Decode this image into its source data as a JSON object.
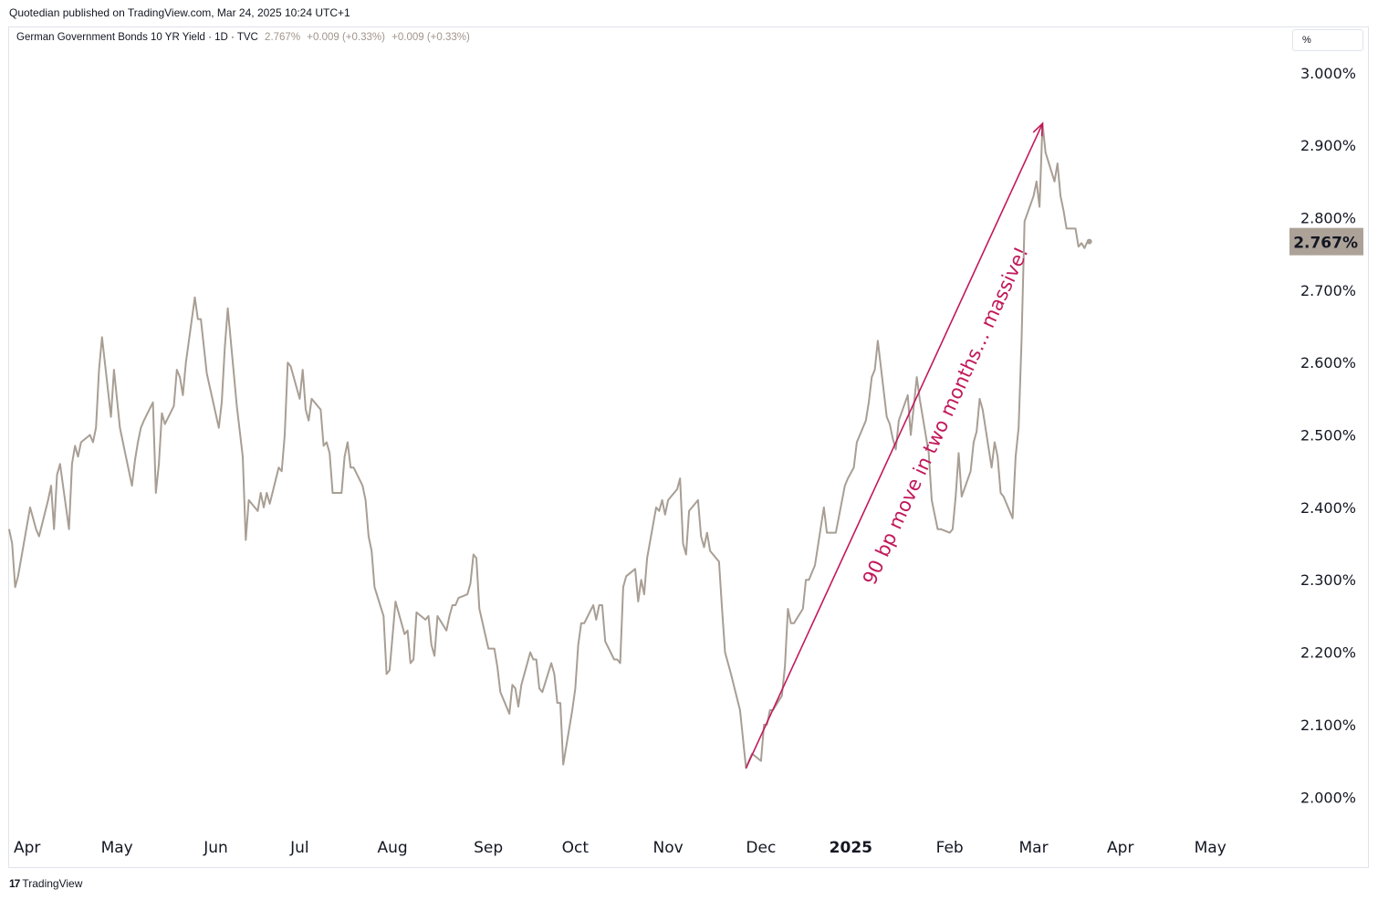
{
  "header": {
    "published": "Quotedian published on TradingView.com, Mar 24, 2025 10:24 UTC+1"
  },
  "legend": {
    "symbol": "German Government Bonds 10 YR Yield · 1D · TVC",
    "last": "2.767%",
    "change1": "+0.009 (+0.33%)",
    "change2": "+0.009 (+0.33%)"
  },
  "unit_selector": "%",
  "footer": {
    "logo_icon": "tradingview-logo-icon",
    "logo_text": "TradingView"
  },
  "colors": {
    "line": "#a89e94",
    "annotation": "#c2185b",
    "price_label_bg": "#aca298",
    "grid": "#ffffff"
  },
  "chart_data": {
    "type": "line",
    "title": "",
    "xlabel": "",
    "ylabel": "",
    "ylim": [
      1.96,
      3.03
    ],
    "y_ticks": [
      "2.000%",
      "2.100%",
      "2.200%",
      "2.300%",
      "2.400%",
      "2.500%",
      "2.600%",
      "2.700%",
      "2.800%",
      "2.900%",
      "3.000%"
    ],
    "x_range": [
      "2024-03-26",
      "2025-05-25"
    ],
    "x_ticks": [
      {
        "date": "2024-04-01",
        "label": "Apr"
      },
      {
        "date": "2024-05-01",
        "label": "May"
      },
      {
        "date": "2024-06-03",
        "label": "Jun"
      },
      {
        "date": "2024-07-01",
        "label": "Jul"
      },
      {
        "date": "2024-08-01",
        "label": "Aug"
      },
      {
        "date": "2024-09-02",
        "label": "Sep"
      },
      {
        "date": "2024-10-01",
        "label": "Oct"
      },
      {
        "date": "2024-11-01",
        "label": "Nov"
      },
      {
        "date": "2024-12-02",
        "label": "Dec"
      },
      {
        "date": "2025-01-01",
        "label": "2025",
        "bold": true
      },
      {
        "date": "2025-02-03",
        "label": "Feb"
      },
      {
        "date": "2025-03-03",
        "label": "Mar"
      },
      {
        "date": "2025-04-01",
        "label": "Apr"
      },
      {
        "date": "2025-05-01",
        "label": "May"
      }
    ],
    "last_price_label": "2.767%",
    "series": [
      {
        "points": [
          [
            "2024-03-26",
            2.37
          ],
          [
            "2024-03-27",
            2.35
          ],
          [
            "2024-03-28",
            2.29
          ],
          [
            "2024-03-29",
            2.305
          ],
          [
            "2024-04-02",
            2.4
          ],
          [
            "2024-04-04",
            2.37
          ],
          [
            "2024-04-05",
            2.36
          ],
          [
            "2024-04-08",
            2.41
          ],
          [
            "2024-04-09",
            2.43
          ],
          [
            "2024-04-10",
            2.37
          ],
          [
            "2024-04-11",
            2.445
          ],
          [
            "2024-04-12",
            2.46
          ],
          [
            "2024-04-15",
            2.37
          ],
          [
            "2024-04-16",
            2.46
          ],
          [
            "2024-04-17",
            2.485
          ],
          [
            "2024-04-18",
            2.47
          ],
          [
            "2024-04-19",
            2.49
          ],
          [
            "2024-04-22",
            2.5
          ],
          [
            "2024-04-23",
            2.49
          ],
          [
            "2024-04-24",
            2.51
          ],
          [
            "2024-04-25",
            2.59
          ],
          [
            "2024-04-26",
            2.635
          ],
          [
            "2024-04-29",
            2.525
          ],
          [
            "2024-04-30",
            2.59
          ],
          [
            "2024-05-02",
            2.51
          ],
          [
            "2024-05-03",
            2.49
          ],
          [
            "2024-05-06",
            2.43
          ],
          [
            "2024-05-07",
            2.465
          ],
          [
            "2024-05-08",
            2.49
          ],
          [
            "2024-05-09",
            2.51
          ],
          [
            "2024-05-10",
            2.52
          ],
          [
            "2024-05-13",
            2.545
          ],
          [
            "2024-05-14",
            2.42
          ],
          [
            "2024-05-15",
            2.46
          ],
          [
            "2024-05-16",
            2.53
          ],
          [
            "2024-05-17",
            2.515
          ],
          [
            "2024-05-20",
            2.54
          ],
          [
            "2024-05-21",
            2.59
          ],
          [
            "2024-05-22",
            2.58
          ],
          [
            "2024-05-23",
            2.555
          ],
          [
            "2024-05-24",
            2.6
          ],
          [
            "2024-05-27",
            2.69
          ],
          [
            "2024-05-28",
            2.66
          ],
          [
            "2024-05-29",
            2.66
          ],
          [
            "2024-05-31",
            2.585
          ],
          [
            "2024-06-04",
            2.51
          ],
          [
            "2024-06-05",
            2.545
          ],
          [
            "2024-06-06",
            2.62
          ],
          [
            "2024-06-07",
            2.675
          ],
          [
            "2024-06-10",
            2.54
          ],
          [
            "2024-06-12",
            2.47
          ],
          [
            "2024-06-13",
            2.355
          ],
          [
            "2024-06-14",
            2.41
          ],
          [
            "2024-06-17",
            2.395
          ],
          [
            "2024-06-18",
            2.42
          ],
          [
            "2024-06-19",
            2.4
          ],
          [
            "2024-06-20",
            2.42
          ],
          [
            "2024-06-21",
            2.405
          ],
          [
            "2024-06-24",
            2.455
          ],
          [
            "2024-06-25",
            2.45
          ],
          [
            "2024-06-26",
            2.5
          ],
          [
            "2024-06-27",
            2.6
          ],
          [
            "2024-06-28",
            2.595
          ],
          [
            "2024-07-01",
            2.55
          ],
          [
            "2024-07-02",
            2.59
          ],
          [
            "2024-07-03",
            2.535
          ],
          [
            "2024-07-04",
            2.52
          ],
          [
            "2024-07-05",
            2.55
          ],
          [
            "2024-07-08",
            2.535
          ],
          [
            "2024-07-09",
            2.485
          ],
          [
            "2024-07-10",
            2.49
          ],
          [
            "2024-07-11",
            2.475
          ],
          [
            "2024-07-12",
            2.42
          ],
          [
            "2024-07-15",
            2.42
          ],
          [
            "2024-07-16",
            2.47
          ],
          [
            "2024-07-17",
            2.49
          ],
          [
            "2024-07-18",
            2.455
          ],
          [
            "2024-07-19",
            2.455
          ],
          [
            "2024-07-22",
            2.43
          ],
          [
            "2024-07-23",
            2.41
          ],
          [
            "2024-07-24",
            2.36
          ],
          [
            "2024-07-25",
            2.34
          ],
          [
            "2024-07-26",
            2.29
          ],
          [
            "2024-07-29",
            2.25
          ],
          [
            "2024-07-30",
            2.17
          ],
          [
            "2024-07-31",
            2.175
          ],
          [
            "2024-08-02",
            2.27
          ],
          [
            "2024-08-05",
            2.225
          ],
          [
            "2024-08-06",
            2.23
          ],
          [
            "2024-08-07",
            2.185
          ],
          [
            "2024-08-08",
            2.19
          ],
          [
            "2024-08-09",
            2.255
          ],
          [
            "2024-08-12",
            2.245
          ],
          [
            "2024-08-13",
            2.25
          ],
          [
            "2024-08-14",
            2.21
          ],
          [
            "2024-08-15",
            2.195
          ],
          [
            "2024-08-16",
            2.25
          ],
          [
            "2024-08-19",
            2.23
          ],
          [
            "2024-08-20",
            2.25
          ],
          [
            "2024-08-21",
            2.265
          ],
          [
            "2024-08-22",
            2.265
          ],
          [
            "2024-08-23",
            2.275
          ],
          [
            "2024-08-26",
            2.28
          ],
          [
            "2024-08-27",
            2.295
          ],
          [
            "2024-08-28",
            2.335
          ],
          [
            "2024-08-29",
            2.33
          ],
          [
            "2024-08-30",
            2.26
          ],
          [
            "2024-09-02",
            2.205
          ],
          [
            "2024-09-03",
            2.205
          ],
          [
            "2024-09-04",
            2.205
          ],
          [
            "2024-09-05",
            2.18
          ],
          [
            "2024-09-06",
            2.145
          ],
          [
            "2024-09-09",
            2.115
          ],
          [
            "2024-09-10",
            2.155
          ],
          [
            "2024-09-11",
            2.15
          ],
          [
            "2024-09-12",
            2.125
          ],
          [
            "2024-09-13",
            2.155
          ],
          [
            "2024-09-16",
            2.2
          ],
          [
            "2024-09-17",
            2.19
          ],
          [
            "2024-09-18",
            2.19
          ],
          [
            "2024-09-19",
            2.15
          ],
          [
            "2024-09-20",
            2.145
          ],
          [
            "2024-09-23",
            2.185
          ],
          [
            "2024-09-24",
            2.17
          ],
          [
            "2024-09-25",
            2.13
          ],
          [
            "2024-09-26",
            2.13
          ],
          [
            "2024-09-27",
            2.045
          ],
          [
            "2024-09-30",
            2.12
          ],
          [
            "2024-10-01",
            2.15
          ],
          [
            "2024-10-02",
            2.21
          ],
          [
            "2024-10-03",
            2.24
          ],
          [
            "2024-10-04",
            2.24
          ],
          [
            "2024-10-07",
            2.265
          ],
          [
            "2024-10-08",
            2.245
          ],
          [
            "2024-10-09",
            2.265
          ],
          [
            "2024-10-10",
            2.265
          ],
          [
            "2024-10-11",
            2.215
          ],
          [
            "2024-10-14",
            2.19
          ],
          [
            "2024-10-15",
            2.19
          ],
          [
            "2024-10-16",
            2.185
          ],
          [
            "2024-10-17",
            2.29
          ],
          [
            "2024-10-18",
            2.305
          ],
          [
            "2024-10-21",
            2.315
          ],
          [
            "2024-10-22",
            2.27
          ],
          [
            "2024-10-23",
            2.3
          ],
          [
            "2024-10-24",
            2.28
          ],
          [
            "2024-10-25",
            2.33
          ],
          [
            "2024-10-28",
            2.4
          ],
          [
            "2024-10-29",
            2.395
          ],
          [
            "2024-10-30",
            2.41
          ],
          [
            "2024-10-31",
            2.39
          ],
          [
            "2024-11-01",
            2.41
          ],
          [
            "2024-11-04",
            2.425
          ],
          [
            "2024-11-05",
            2.44
          ],
          [
            "2024-11-06",
            2.35
          ],
          [
            "2024-11-07",
            2.335
          ],
          [
            "2024-11-08",
            2.395
          ],
          [
            "2024-11-11",
            2.41
          ],
          [
            "2024-11-12",
            2.36
          ],
          [
            "2024-11-13",
            2.345
          ],
          [
            "2024-11-14",
            2.365
          ],
          [
            "2024-11-15",
            2.34
          ],
          [
            "2024-11-18",
            2.325
          ],
          [
            "2024-11-19",
            2.26
          ],
          [
            "2024-11-20",
            2.2
          ],
          [
            "2024-11-22",
            2.17
          ],
          [
            "2024-11-25",
            2.12
          ],
          [
            "2024-11-26",
            2.08
          ],
          [
            "2024-11-27",
            2.04
          ],
          [
            "2024-11-28",
            2.05
          ],
          [
            "2024-11-29",
            2.06
          ],
          [
            "2024-12-02",
            2.05
          ],
          [
            "2024-12-03",
            2.1
          ],
          [
            "2024-12-04",
            2.1
          ],
          [
            "2024-12-05",
            2.12
          ],
          [
            "2024-12-06",
            2.12
          ],
          [
            "2024-12-09",
            2.14
          ],
          [
            "2024-12-10",
            2.18
          ],
          [
            "2024-12-11",
            2.26
          ],
          [
            "2024-12-12",
            2.24
          ],
          [
            "2024-12-13",
            2.24
          ],
          [
            "2024-12-16",
            2.26
          ],
          [
            "2024-12-17",
            2.3
          ],
          [
            "2024-12-18",
            2.3
          ],
          [
            "2024-12-19",
            2.31
          ],
          [
            "2024-12-20",
            2.32
          ],
          [
            "2024-12-23",
            2.4
          ],
          [
            "2024-12-24",
            2.365
          ],
          [
            "2024-12-27",
            2.365
          ],
          [
            "2024-12-30",
            2.43
          ],
          [
            "2024-12-31",
            2.44
          ],
          [
            "2025-01-02",
            2.455
          ],
          [
            "2025-01-03",
            2.49
          ],
          [
            "2025-01-06",
            2.52
          ],
          [
            "2025-01-07",
            2.545
          ],
          [
            "2025-01-08",
            2.58
          ],
          [
            "2025-01-09",
            2.59
          ],
          [
            "2025-01-10",
            2.63
          ],
          [
            "2025-01-13",
            2.525
          ],
          [
            "2025-01-14",
            2.515
          ],
          [
            "2025-01-15",
            2.495
          ],
          [
            "2025-01-16",
            2.48
          ],
          [
            "2025-01-17",
            2.52
          ],
          [
            "2025-01-20",
            2.555
          ],
          [
            "2025-01-21",
            2.5
          ],
          [
            "2025-01-22",
            2.54
          ],
          [
            "2025-01-23",
            2.58
          ],
          [
            "2025-01-24",
            2.55
          ],
          [
            "2025-01-27",
            2.475
          ],
          [
            "2025-01-28",
            2.41
          ],
          [
            "2025-01-29",
            2.39
          ],
          [
            "2025-01-30",
            2.37
          ],
          [
            "2025-01-31",
            2.37
          ],
          [
            "2025-02-03",
            2.365
          ],
          [
            "2025-02-04",
            2.37
          ],
          [
            "2025-02-05",
            2.415
          ],
          [
            "2025-02-06",
            2.475
          ],
          [
            "2025-02-07",
            2.415
          ],
          [
            "2025-02-10",
            2.45
          ],
          [
            "2025-02-11",
            2.49
          ],
          [
            "2025-02-12",
            2.505
          ],
          [
            "2025-02-13",
            2.55
          ],
          [
            "2025-02-14",
            2.535
          ],
          [
            "2025-02-17",
            2.455
          ],
          [
            "2025-02-18",
            2.49
          ],
          [
            "2025-02-19",
            2.47
          ],
          [
            "2025-02-20",
            2.42
          ],
          [
            "2025-02-21",
            2.415
          ],
          [
            "2025-02-24",
            2.385
          ],
          [
            "2025-02-25",
            2.47
          ],
          [
            "2025-02-26",
            2.51
          ],
          [
            "2025-02-27",
            2.63
          ],
          [
            "2025-02-28",
            2.795
          ],
          [
            "2025-03-03",
            2.83
          ],
          [
            "2025-03-04",
            2.85
          ],
          [
            "2025-03-05",
            2.815
          ],
          [
            "2025-03-06",
            2.93
          ],
          [
            "2025-03-07",
            2.89
          ],
          [
            "2025-03-10",
            2.85
          ],
          [
            "2025-03-11",
            2.875
          ],
          [
            "2025-03-12",
            2.83
          ],
          [
            "2025-03-13",
            2.81
          ],
          [
            "2025-03-14",
            2.785
          ],
          [
            "2025-03-17",
            2.785
          ],
          [
            "2025-03-18",
            2.76
          ],
          [
            "2025-03-19",
            2.765
          ],
          [
            "2025-03-20",
            2.758
          ],
          [
            "2025-03-21",
            2.767
          ]
        ]
      }
    ],
    "annotation": {
      "text": "90 bp move in two months… massive!",
      "from": [
        "2024-11-27",
        2.04
      ],
      "to": [
        "2025-03-06",
        2.93
      ]
    }
  }
}
